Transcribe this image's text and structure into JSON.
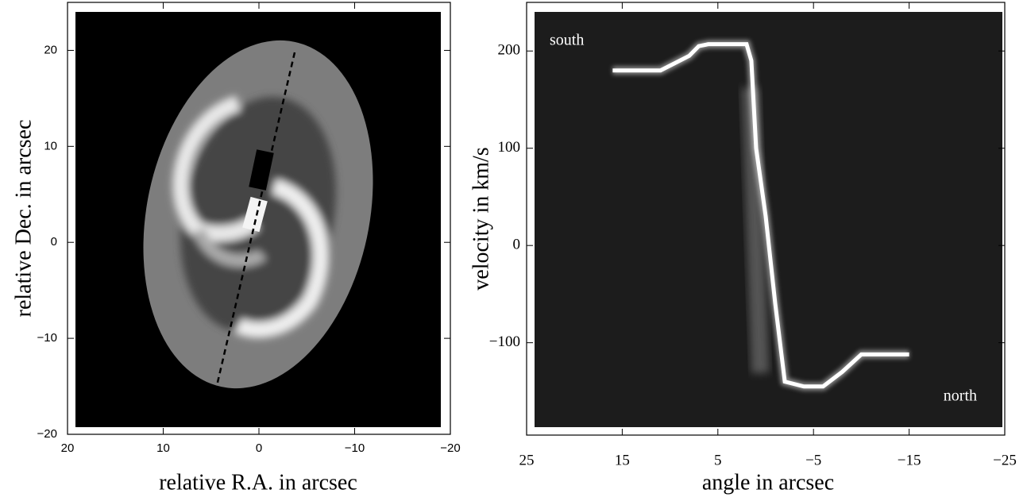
{
  "chart_data": [
    {
      "type": "image",
      "xlabel": "relative R.A. in arcsec",
      "ylabel": "relative Dec. in arcsec",
      "xlim": [
        20,
        -20
      ],
      "ylim": [
        -20,
        25
      ],
      "xticks": [
        20,
        10,
        0,
        {
          "value": -10,
          "label": "−10"
        },
        {
          "value": -20,
          "label": "−20"
        }
      ],
      "yticks": [
        {
          "value": -20,
          "label": "−20"
        },
        {
          "value": -10,
          "label": "−10"
        },
        0,
        10,
        20
      ]
    },
    {
      "type": "line",
      "xlabel": "angle in arcsec",
      "ylabel": "velocity in km/s",
      "annotations": [
        "south",
        "north"
      ],
      "xlim": [
        25,
        -25
      ],
      "ylim": [
        -195,
        250
      ],
      "xticks": [
        25,
        15,
        5,
        {
          "value": -5,
          "label": "−5"
        },
        {
          "value": -15,
          "label": "−15"
        },
        {
          "value": -25,
          "label": "−25"
        }
      ],
      "yticks": [
        {
          "value": -100,
          "label": "−100"
        },
        0,
        100,
        200
      ],
      "color": "#ffffff",
      "x": [
        16,
        11,
        10,
        8,
        7,
        6,
        2,
        1.5,
        1,
        0,
        -1,
        -2,
        -4,
        -6,
        -8,
        -10,
        -15
      ],
      "values": [
        180,
        180,
        185,
        195,
        205,
        207,
        207,
        190,
        100,
        30,
        -60,
        -140,
        -145,
        -145,
        -130,
        -112,
        -112
      ]
    }
  ]
}
